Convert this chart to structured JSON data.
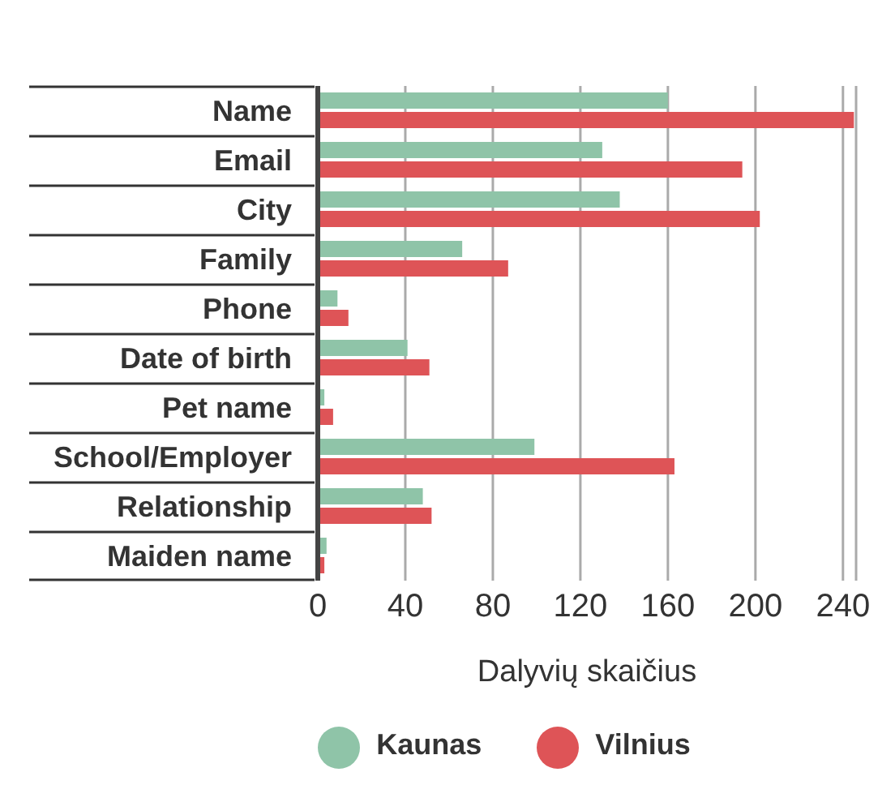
{
  "chart_data": {
    "type": "bar",
    "orientation": "horizontal",
    "xlabel": "Dalyvių skaičius",
    "categories": [
      "Name",
      "Email",
      "City",
      "Family",
      "Phone",
      "Date of birth",
      "Pet name",
      "School/Employer",
      "Relationship",
      "Maiden name"
    ],
    "series": [
      {
        "name": "Kaunas",
        "color": "#8fc4a8",
        "values": [
          160,
          130,
          138,
          66,
          9,
          41,
          3,
          99,
          48,
          4
        ]
      },
      {
        "name": "Vilnius",
        "color": "#de5457",
        "values": [
          245,
          194,
          202,
          87,
          14,
          51,
          7,
          163,
          52,
          3
        ]
      }
    ],
    "xlim": [
      0,
      246
    ],
    "xticks": [
      0,
      40,
      80,
      120,
      160,
      200,
      240
    ],
    "grid": "x",
    "legend": "bottom"
  }
}
